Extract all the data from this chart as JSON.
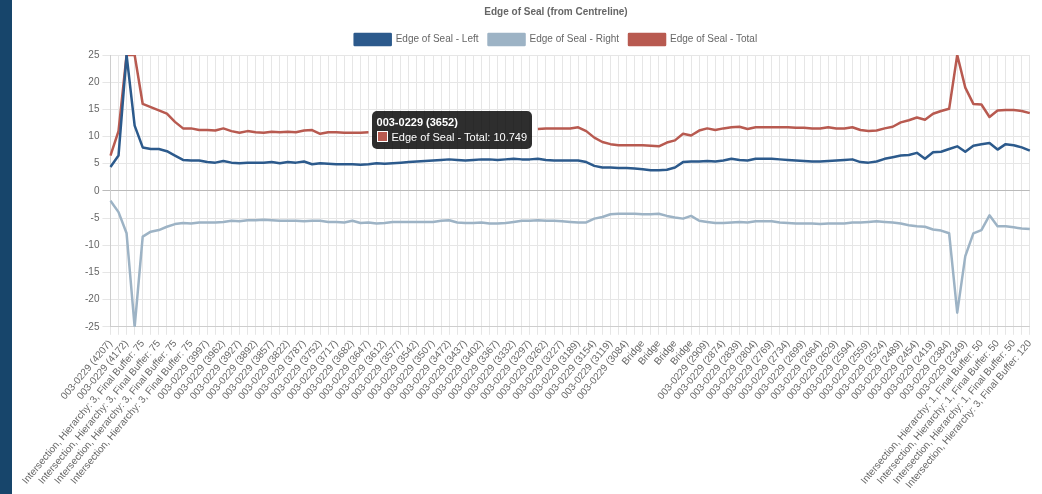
{
  "chart_data": {
    "type": "line",
    "title": "Edge of Seal (from Centreline)",
    "categories": [
      "003-0229 (4207)",
      null,
      "003-0229 (4172)",
      null,
      "Intersection, Hierarchy: 3, Final Buffer: 75",
      null,
      "Intersection, Hierarchy: 3, Final Buffer: 75",
      null,
      "Intersection, Hierarchy: 3, Final Buffer: 75",
      null,
      "Intersection, Hierarchy: 3, Final Buffer: 75",
      null,
      "003-0229 (3997)",
      null,
      "003-0229 (3962)",
      null,
      "003-0229 (3927)",
      null,
      "003-0229 (3892)",
      null,
      "003-0229 (3857)",
      null,
      "003-0229 (3822)",
      null,
      "003-0229 (3787)",
      null,
      "003-0229 (3752)",
      null,
      "003-0229 (3717)",
      null,
      "003-0229 (3682)",
      null,
      "003-0229 (3647)",
      null,
      "003-0229 (3612)",
      null,
      "003-0229 (3577)",
      null,
      "003-0229 (3542)",
      null,
      "003-0229 (3507)",
      null,
      "003-0229 (3472)",
      null,
      "003-0229 (3437)",
      null,
      "003-0229 (3402)",
      null,
      "003-0229 (3367)",
      null,
      "003-0229 (3332)",
      null,
      "003-0229 (3297)",
      null,
      "003-0229 (3262)",
      null,
      "003-0229 (3227)",
      null,
      "003-0229 (3189)",
      null,
      "003-0229 (3154)",
      null,
      "003-0229 (3119)",
      null,
      "003-0229 (3084)",
      null,
      "Bridge",
      null,
      "Bridge",
      null,
      "Bridge",
      null,
      "Bridge",
      null,
      "003-0229 (2909)",
      null,
      "003-0229 (2874)",
      null,
      "003-0229 (2839)",
      null,
      "003-0229 (2804)",
      null,
      "003-0229 (2769)",
      null,
      "003-0229 (2734)",
      null,
      "003-0229 (2699)",
      null,
      "003-0229 (2664)",
      null,
      "003-0229 (2629)",
      null,
      "003-0229 (2594)",
      null,
      "003-0229 (2559)",
      null,
      "003-0229 (2524)",
      null,
      "003-0229 (2489)",
      null,
      "003-0229 (2454)",
      null,
      "003-0229 (2419)",
      null,
      "003-0229 (2384)",
      null,
      "003-0229 (2349)",
      null,
      "Intersection, Hierarchy: 1, Final Buffer: 50",
      null,
      "Intersection, Hierarchy: 1, Final Buffer: 50",
      null,
      "Intersection, Hierarchy: 1, Final Buffer: 50",
      null,
      "Intersection, Hierarchy: 3, Final Buffer: 120"
    ],
    "series": [
      {
        "name": "Edge of Seal - Left",
        "color": "#2c5a8c",
        "values": [
          4.4,
          6.5,
          25,
          12,
          8,
          7.7,
          7.7,
          7.3,
          6.5,
          5.7,
          5.6,
          5.6,
          5.3,
          5.2,
          5.5,
          5.2,
          5.1,
          5.2,
          5.2,
          5.2,
          5.3,
          5.1,
          5.3,
          5.2,
          5.4,
          4.9,
          5.1,
          5,
          4.9,
          4.9,
          4.9,
          4.8,
          4.9,
          5.1,
          5,
          5.1,
          5.2,
          5.3,
          5.4,
          5.5,
          5.6,
          5.7,
          5.8,
          5.7,
          5.6,
          5.7,
          5.8,
          5.8,
          5.7,
          5.8,
          5.9,
          5.8,
          5.8,
          5.9,
          5.7,
          5.6,
          5.6,
          5.6,
          5.6,
          5.3,
          4.6,
          4.3,
          4.3,
          4.2,
          4.2,
          4.1,
          4,
          3.8,
          3.8,
          3.9,
          4.3,
          5.3,
          5.4,
          5.4,
          5.5,
          5.4,
          5.6,
          5.9,
          5.7,
          5.6,
          5.9,
          5.9,
          5.9,
          5.8,
          5.7,
          5.6,
          5.5,
          5.4,
          5.4,
          5.5,
          5.6,
          5.7,
          5.8,
          5.3,
          5.2,
          5.4,
          5.9,
          6.2,
          6.5,
          6.6,
          7,
          5.9,
          7.1,
          7.2,
          7.7,
          8.2,
          7.2,
          8.3,
          8.6,
          8.8,
          7.6,
          8.6,
          8.4,
          8,
          7.4
        ]
      },
      {
        "name": "Edge of Seal - Right",
        "color": "#9db3c5",
        "values": [
          -1.8,
          -3.9,
          -7.8,
          -25,
          -8.4,
          -7.5,
          -7.2,
          -6.6,
          -6.1,
          -5.9,
          -6,
          -5.8,
          -5.8,
          -5.8,
          -5.7,
          -5.5,
          -5.6,
          -5.4,
          -5.4,
          -5.3,
          -5.4,
          -5.5,
          -5.5,
          -5.5,
          -5.6,
          -5.5,
          -5.5,
          -5.7,
          -5.7,
          -5.8,
          -5.5,
          -5.9,
          -5.8,
          -6,
          -5.9,
          -5.7,
          -5.7,
          -5.7,
          -5.7,
          -5.7,
          -5.7,
          -5.5,
          -5.4,
          -5.8,
          -5.9,
          -5.9,
          -5.8,
          -6,
          -6,
          -5.9,
          -5.7,
          -5.5,
          -5.5,
          -5.4,
          -5.5,
          -5.5,
          -5.6,
          -5.7,
          -5.8,
          -5.8,
          -5.1,
          -4.8,
          -4.3,
          -4.2,
          -4.2,
          -4.2,
          -4.3,
          -4.3,
          -4.2,
          -4.6,
          -4.9,
          -5.1,
          -4.6,
          -5.5,
          -5.7,
          -5.9,
          -5.9,
          -5.8,
          -5.7,
          -5.8,
          -5.6,
          -5.6,
          -5.6,
          -5.8,
          -5.9,
          -6,
          -6,
          -6,
          -6.1,
          -6,
          -6,
          -6,
          -5.8,
          -5.8,
          -5.7,
          -5.6,
          -5.7,
          -5.8,
          -6,
          -6.3,
          -6.5,
          -6.6,
          -7.1,
          -7.3,
          -7.8,
          -22.4,
          -12,
          -7.8,
          -7.2,
          -4.5,
          -6.5,
          -6.5,
          -6.7,
          -6.9,
          -7
        ]
      },
      {
        "name": "Edge of Seal - Total",
        "color": "#b85a50",
        "values": [
          6.5,
          11,
          25,
          25,
          16,
          15.4,
          14.8,
          14.2,
          12.7,
          11.5,
          11.5,
          11.2,
          11.2,
          11.1,
          11.5,
          11,
          10.7,
          11,
          10.8,
          10.7,
          10.9,
          10.8,
          10.9,
          10.8,
          11.1,
          11.2,
          10.5,
          10.8,
          10.8,
          10.7,
          10.7,
          10.7,
          10.8,
          null,
          null,
          null,
          null,
          null,
          null,
          null,
          null,
          null,
          null,
          null,
          null,
          null,
          null,
          null,
          null,
          null,
          null,
          null,
          null,
          11.4,
          11.5,
          11.5,
          11.5,
          11.5,
          11.7,
          11,
          9.8,
          9,
          8.6,
          8.4,
          8.4,
          8.4,
          8.4,
          8.3,
          8.2,
          8.9,
          9.3,
          10.5,
          10.2,
          11.1,
          11.5,
          11.2,
          11.5,
          11.7,
          11.8,
          11.4,
          11.7,
          11.7,
          11.7,
          11.7,
          11.7,
          11.6,
          11.6,
          11.5,
          11.5,
          11.7,
          11.5,
          11.5,
          11.7,
          11.2,
          11,
          11.1,
          11.5,
          11.8,
          12.6,
          13,
          13.5,
          13.1,
          14.2,
          14.7,
          15.1,
          25,
          19,
          16,
          15.9,
          13.6,
          14.8,
          14.9,
          14.9,
          14.7,
          14.3
        ]
      }
    ],
    "ylim": [
      -25,
      25
    ],
    "yticks": [
      -25,
      -20,
      -15,
      -10,
      -5,
      0,
      5,
      10,
      15,
      20,
      25
    ],
    "grid": true,
    "legend": "top",
    "marker": "none",
    "line_style": "solid",
    "annotations": [
      "003-0229 (3652)",
      "Edge of Seal - Total: 10.749"
    ]
  }
}
